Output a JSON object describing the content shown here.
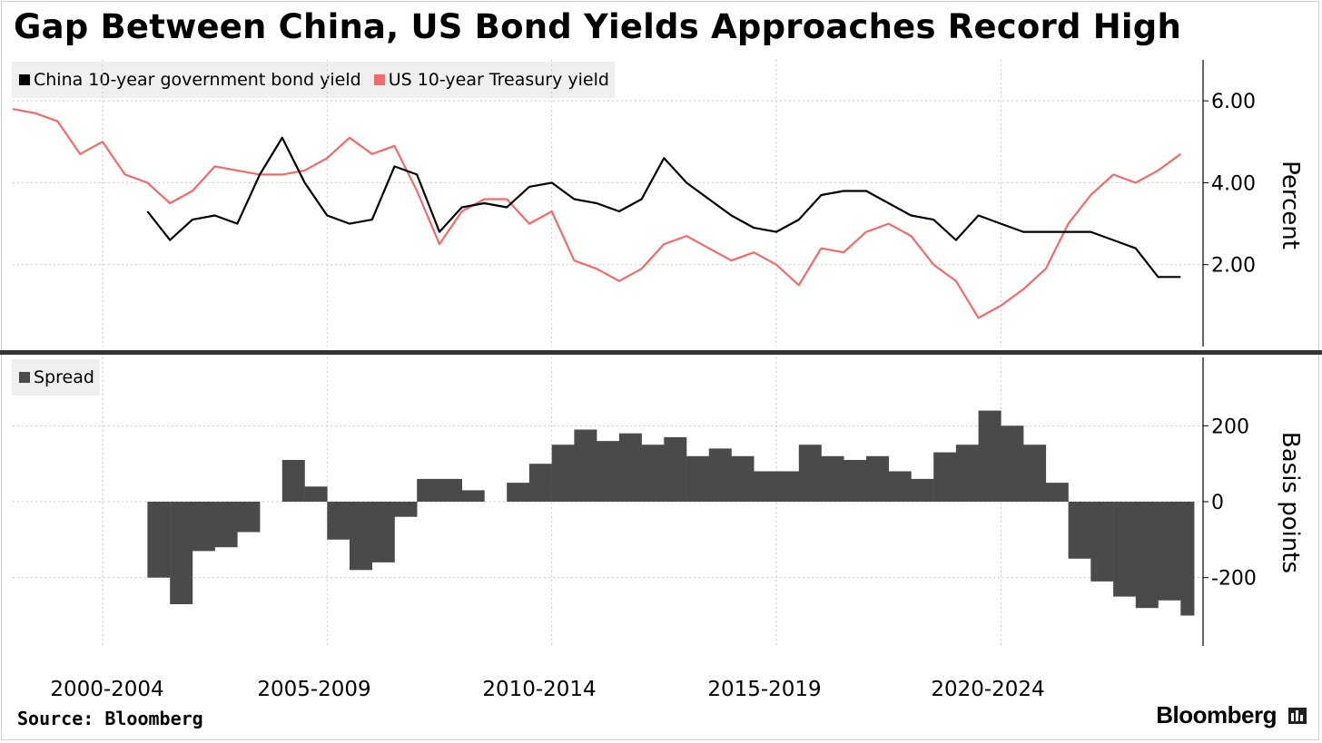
{
  "title": "Gap Between China, US Bond Yields Approaches Record High",
  "source": "Source: Bloomberg",
  "brand": "Bloomberg",
  "brand_icon": "bloomberg-terminal-icon",
  "colors": {
    "china": "#000000",
    "us": "#f26a6a",
    "spread": "#4a4a4a",
    "grid": "#c8c8c8",
    "divider": "#333333"
  },
  "chart_data": [
    {
      "type": "line",
      "title": "",
      "xlabel": "",
      "ylabel": "Percent",
      "ylim": [
        0,
        7
      ],
      "yticks": [
        "6.00",
        "4.00",
        "2.00"
      ],
      "legend": "top-left",
      "grid": true,
      "x_tick_labels": [
        "2000-2004",
        "2005-2009",
        "2010-2014",
        "2015-2019",
        "2020-2024"
      ],
      "x": [
        1999.0,
        1999.5,
        2000.0,
        2000.5,
        2001.0,
        2001.5,
        2002.0,
        2002.5,
        2003.0,
        2003.5,
        2004.0,
        2004.5,
        2005.0,
        2005.5,
        2006.0,
        2006.5,
        2007.0,
        2007.5,
        2008.0,
        2008.5,
        2009.0,
        2009.5,
        2010.0,
        2010.5,
        2011.0,
        2011.5,
        2012.0,
        2012.5,
        2013.0,
        2013.5,
        2014.0,
        2014.5,
        2015.0,
        2015.5,
        2016.0,
        2016.5,
        2017.0,
        2017.5,
        2018.0,
        2018.5,
        2019.0,
        2019.5,
        2020.0,
        2020.5,
        2021.0,
        2021.5,
        2022.0,
        2022.5,
        2023.0,
        2023.5,
        2024.0,
        2024.5,
        2025.0
      ],
      "series": [
        {
          "name": "China 10-year government bond yield",
          "values": [
            null,
            null,
            null,
            null,
            null,
            null,
            3.3,
            2.6,
            3.1,
            3.2,
            3.0,
            4.2,
            5.1,
            4.0,
            3.2,
            3.0,
            3.1,
            4.4,
            4.2,
            2.8,
            3.4,
            3.5,
            3.4,
            3.9,
            4.0,
            3.6,
            3.5,
            3.3,
            3.6,
            4.6,
            4.0,
            3.6,
            3.2,
            2.9,
            2.8,
            3.1,
            3.7,
            3.8,
            3.8,
            3.5,
            3.2,
            3.1,
            2.6,
            3.2,
            3.0,
            2.8,
            2.8,
            2.8,
            2.8,
            2.6,
            2.4,
            1.7,
            1.7
          ]
        },
        {
          "name": "US 10-year Treasury yield",
          "values": [
            5.8,
            5.7,
            5.5,
            4.7,
            5.0,
            4.2,
            4.0,
            3.5,
            3.8,
            4.4,
            4.3,
            4.2,
            4.2,
            4.3,
            4.6,
            5.1,
            4.7,
            4.9,
            3.8,
            2.5,
            3.3,
            3.6,
            3.6,
            3.0,
            3.3,
            2.1,
            1.9,
            1.6,
            1.9,
            2.5,
            2.7,
            2.4,
            2.1,
            2.3,
            2.0,
            1.5,
            2.4,
            2.3,
            2.8,
            3.0,
            2.7,
            2.0,
            1.6,
            0.7,
            1.0,
            1.4,
            1.9,
            3.0,
            3.7,
            4.2,
            4.0,
            4.3,
            4.7
          ]
        }
      ]
    },
    {
      "type": "bar",
      "title": "",
      "xlabel": "",
      "ylabel": "Basis points",
      "ylim": [
        -380,
        380
      ],
      "yticks": [
        "200",
        "0",
        "-200"
      ],
      "legend": "top-left",
      "grid": true,
      "series": [
        {
          "name": "Spread",
          "x": [
            2002.0,
            2002.5,
            2003.0,
            2003.5,
            2004.0,
            2004.5,
            2005.0,
            2005.5,
            2006.0,
            2006.5,
            2007.0,
            2007.5,
            2008.0,
            2008.5,
            2009.0,
            2009.5,
            2010.0,
            2010.5,
            2011.0,
            2011.5,
            2012.0,
            2012.5,
            2013.0,
            2013.5,
            2014.0,
            2014.5,
            2015.0,
            2015.5,
            2016.0,
            2016.5,
            2017.0,
            2017.5,
            2018.0,
            2018.5,
            2019.0,
            2019.5,
            2020.0,
            2020.5,
            2021.0,
            2021.5,
            2022.0,
            2022.5,
            2023.0,
            2023.5,
            2024.0,
            2024.5,
            2025.0
          ],
          "values": [
            -200,
            -270,
            -130,
            -120,
            -80,
            0,
            110,
            40,
            -100,
            -180,
            -160,
            -40,
            60,
            60,
            30,
            0,
            50,
            100,
            150,
            190,
            160,
            180,
            150,
            170,
            120,
            140,
            120,
            80,
            80,
            150,
            120,
            110,
            120,
            80,
            60,
            130,
            150,
            240,
            200,
            150,
            50,
            -150,
            -210,
            -250,
            -280,
            -260,
            -300
          ]
        }
      ]
    }
  ]
}
